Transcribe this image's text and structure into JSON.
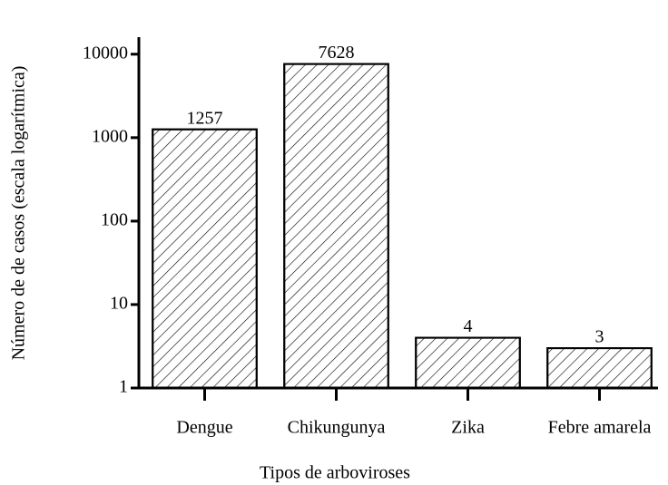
{
  "chart_data": {
    "type": "bar",
    "x_label": "Tipos de arboviroses",
    "y_label": "Número de de casos (escala logarítmica)",
    "categories": [
      "Dengue",
      "Chikungunya",
      "Zika",
      "Febre amarela"
    ],
    "values": [
      1257,
      7628,
      4,
      3
    ],
    "color": "#ffffff",
    "hatch": true,
    "log_scale": true,
    "ylim": [
      1,
      16000
    ],
    "yticks": [
      1,
      10,
      100,
      1000,
      10000
    ],
    "grid": false
  }
}
